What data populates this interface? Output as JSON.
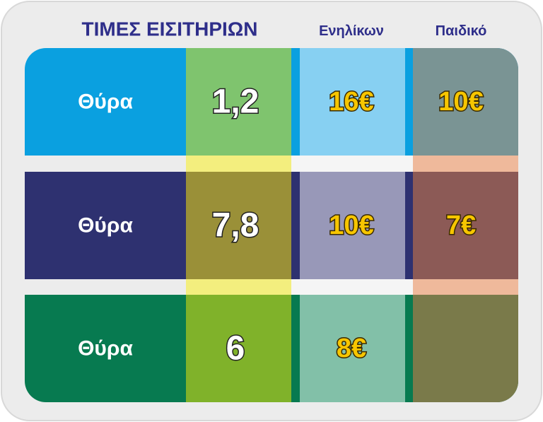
{
  "header": {
    "title": "ΤΙΜΕΣ ΕΙΣΙΤΗΡΙΩΝ",
    "columns": [
      "Ενηλίκων",
      "Παιδικό"
    ]
  },
  "table": {
    "rows": [
      [
        "Θύρα",
        "1,2",
        "16€",
        "10€"
      ],
      [
        "Θύρα",
        "7,8",
        "10€",
        "7€"
      ],
      [
        "Θύρα",
        "6",
        "8€"
      ]
    ]
  }
}
